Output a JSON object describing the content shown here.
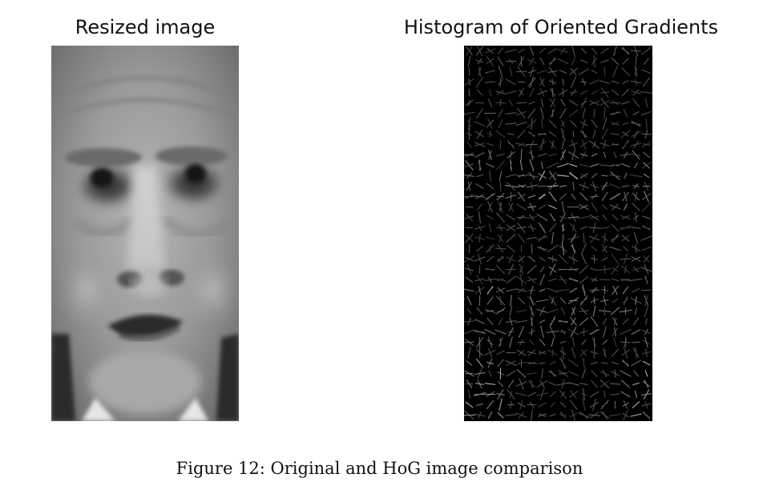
{
  "figure": {
    "left_panel": {
      "title": "Resized image"
    },
    "right_panel": {
      "title": "Histogram of Oriented Gradients"
    },
    "caption": "Figure 12: Original and HoG image comparison"
  }
}
